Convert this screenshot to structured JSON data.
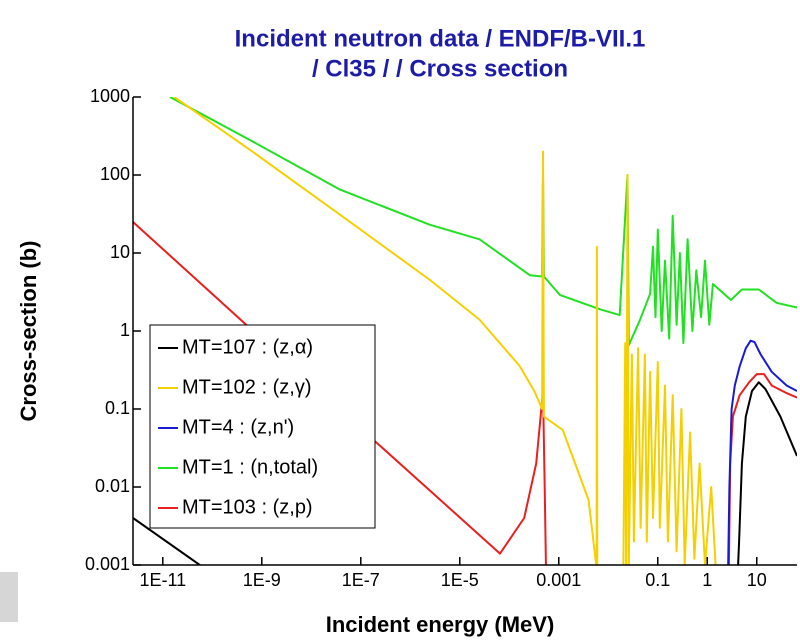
{
  "chart_data": {
    "type": "line",
    "title": [
      "Incident neutron data / ENDF/B-VII.1",
      "/ Cl35 / / Cross section"
    ],
    "xlabel": "Incident energy (MeV)",
    "ylabel": "Cross-section (b)",
    "xscale": "log",
    "yscale": "log",
    "xlim": [
      2.5e-12,
      65
    ],
    "ylim": [
      0.001,
      1000
    ],
    "xticks": [
      {
        "value": 1e-11,
        "label": "1E-11"
      },
      {
        "value": 1e-09,
        "label": "1E-9"
      },
      {
        "value": 1e-07,
        "label": "1E-7"
      },
      {
        "value": 1e-05,
        "label": "1E-5"
      },
      0.001,
      0.1,
      1,
      10
    ],
    "yticks": [
      1000,
      100,
      10,
      1,
      0.1,
      0.01,
      0.001
    ],
    "legend": "lower left",
    "series": [
      {
        "name": "MT=107 : (z,α)",
        "color": "#000000",
        "x": [
          2.5e-12,
          5.6e-11,
          1e-10,
          null,
          4,
          4.4,
          5,
          6,
          8,
          11,
          15,
          30,
          65
        ],
        "values": [
          0.004,
          0.001,
          0.0005,
          null,
          0.0005,
          0.002,
          0.02,
          0.08,
          0.17,
          0.22,
          0.18,
          0.08,
          0.025
        ]
      },
      {
        "name": "MT=102 : (z,γ)",
        "color": "#f5d000",
        "x": [
          1.7e-11,
          5.8e-10,
          3.8e-08,
          2.5e-06,
          2.5e-05,
          0.00016,
          0.00032,
          0.00046,
          0.00048,
          0.0005,
          0.0012,
          0.004,
          0.0057,
          0.0058,
          0.0059,
          0.006,
          0.02,
          0.022,
          0.023,
          0.0245,
          0.026,
          0.03,
          0.033,
          0.04,
          0.045,
          0.055,
          0.06,
          0.07,
          0.08,
          0.1,
          0.11,
          0.14,
          0.16,
          0.2,
          0.24,
          0.3,
          0.35,
          0.45,
          0.55,
          0.7,
          0.9,
          1.2,
          1.5,
          2
        ],
        "values": [
          1000,
          210,
          31,
          4.5,
          1.4,
          0.36,
          0.17,
          0.1,
          200,
          0.08,
          0.054,
          0.0068,
          0.001,
          0.0005,
          12,
          0.0005,
          0.0005,
          0.7,
          0.0005,
          100,
          0.001,
          0.5,
          0.002,
          0.6,
          0.003,
          0.5,
          0.002,
          0.3,
          0.004,
          0.4,
          0.003,
          0.2,
          0.002,
          0.15,
          0.0015,
          0.1,
          0.001,
          0.05,
          0.0012,
          0.02,
          0.001,
          0.01,
          0.0008,
          0.0008
        ]
      },
      {
        "name": "MT=4 : (z,n')",
        "color": "#1a1ad0",
        "x": [
          2.6,
          2.8,
          3.1,
          3.6,
          4.5,
          6,
          7.5,
          9,
          12,
          20,
          40,
          65
        ],
        "values": [
          0.0005,
          0.01,
          0.1,
          0.2,
          0.35,
          0.6,
          0.75,
          0.72,
          0.5,
          0.3,
          0.2,
          0.17
        ]
      },
      {
        "name": "MT=1 : (n,total)",
        "color": "#22e022",
        "x": [
          1.4e-11,
          5.8e-10,
          3.8e-08,
          2.5e-06,
          2.5e-05,
          0.00026,
          0.00046,
          0.00048,
          0.0005,
          0.00105,
          0.0068,
          0.017,
          0.0245,
          0.026,
          0.044,
          0.07,
          0.08,
          0.09,
          0.1,
          0.12,
          0.14,
          0.17,
          0.2,
          0.24,
          0.28,
          0.33,
          0.4,
          0.5,
          0.6,
          0.75,
          0.9,
          1.1,
          1.3,
          3,
          5,
          11,
          25,
          65
        ],
        "values": [
          1000,
          280,
          65,
          23,
          15,
          5.2,
          5,
          120,
          5,
          2.9,
          1.9,
          1.6,
          100,
          0.66,
          1.4,
          3,
          12,
          1.5,
          20,
          1,
          8,
          0.8,
          30,
          1.2,
          10,
          0.7,
          15,
          1,
          6,
          1.5,
          8,
          1.2,
          4,
          2.5,
          3.4,
          3.4,
          2.3,
          2
        ]
      },
      {
        "name": "MT=103 : (z,p)",
        "color": "#e82020",
        "x": [
          2.5e-12,
          2.3e-08,
          6.5e-05,
          0.0002,
          0.00035,
          0.00048,
          0.00052,
          0.00056,
          null,
          2.7,
          2.9,
          3.3,
          4.5,
          7,
          10,
          14,
          20,
          40,
          65
        ],
        "values": [
          25,
          0.13,
          0.0014,
          0.004,
          0.02,
          0.17,
          0.01,
          0.0005,
          null,
          0.0005,
          0.02,
          0.08,
          0.15,
          0.22,
          0.28,
          0.28,
          0.2,
          0.16,
          0.14
        ]
      }
    ]
  }
}
